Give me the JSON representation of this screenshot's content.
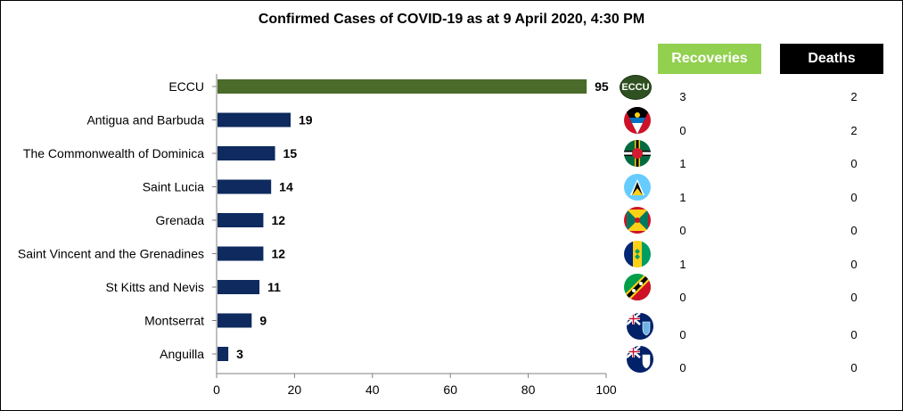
{
  "chart_data": {
    "type": "bar",
    "orientation": "horizontal",
    "title": "Confirmed Cases of COVID-19 as at 9 April 2020, 4:30 PM",
    "categories": [
      "ECCU",
      "Antigua and Barbuda",
      "The Commonwealth of Dominica",
      "Saint Lucia",
      "Grenada",
      "Saint Vincent and the Grenadines",
      "St Kitts and Nevis",
      "Montserrat",
      "Anguilla"
    ],
    "values": [
      95,
      19,
      15,
      14,
      12,
      12,
      11,
      9,
      3
    ],
    "xlim": [
      0,
      100
    ],
    "xticks": [
      0,
      20,
      40,
      60,
      80,
      100
    ],
    "colors": {
      "eccu_bar": "#4a6b2a",
      "country_bar": "#0e2a5e"
    },
    "grid": false
  },
  "table": {
    "recoveries_label": "Recoveries",
    "deaths_label": "Deaths",
    "rows": [
      {
        "flag": "eccu-flag",
        "flag_text": "ECCU",
        "recoveries": "3",
        "deaths": "2"
      },
      {
        "flag": "antigua-flag",
        "recoveries": "0",
        "deaths": "2"
      },
      {
        "flag": "dominica-flag",
        "recoveries": "1",
        "deaths": "0"
      },
      {
        "flag": "saint-lucia-flag",
        "recoveries": "1",
        "deaths": "0"
      },
      {
        "flag": "grenada-flag",
        "recoveries": "0",
        "deaths": "0"
      },
      {
        "flag": "st-vincent-flag",
        "recoveries": "1",
        "deaths": "0"
      },
      {
        "flag": "st-kitts-flag",
        "recoveries": "0",
        "deaths": "0"
      },
      {
        "flag": "montserrat-flag",
        "recoveries": "0",
        "deaths": "0"
      },
      {
        "flag": "anguilla-flag",
        "recoveries": "0",
        "deaths": "0"
      }
    ],
    "colors": {
      "recoveries_bg": "#92d050",
      "deaths_bg": "#000000"
    }
  }
}
